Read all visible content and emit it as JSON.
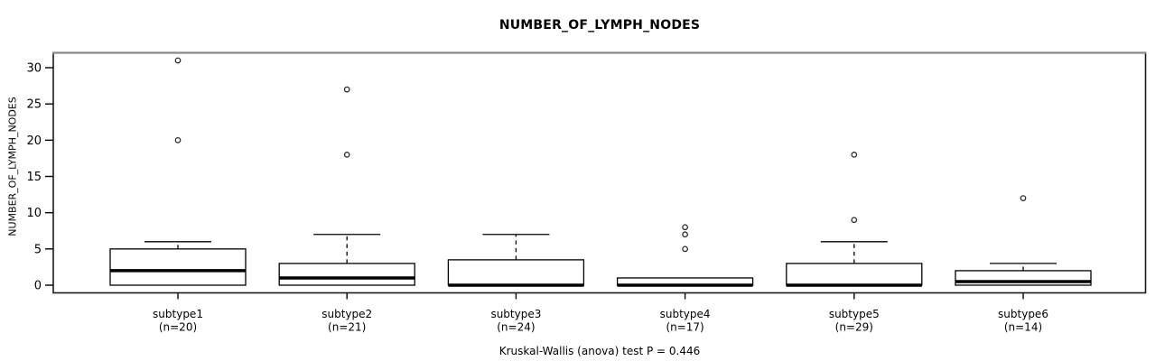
{
  "title": "NUMBER_OF_LYMPH_NODES",
  "y_axis_title": "NUMBER_OF_LYMPH_NODES",
  "caption": "Kruskal-Wallis (anova) test P = 0.446",
  "colors": {
    "foreground": "#000000",
    "box_fill": "#ffffff",
    "border_top": "#8a8a8a",
    "outlier_stroke": "#2a2a2a",
    "background": "#ffffff"
  },
  "chart_data": {
    "type": "boxplot",
    "title": "NUMBER_OF_LYMPH_NODES",
    "ylabel": "NUMBER_OF_LYMPH_NODES",
    "xlabel": "",
    "grid": false,
    "legend": false,
    "ylim": [
      0,
      32
    ],
    "yticks": [
      0,
      5,
      10,
      15,
      20,
      25,
      30
    ],
    "categories": [
      "subtype1",
      "subtype2",
      "subtype3",
      "subtype4",
      "subtype5",
      "subtype6"
    ],
    "category_sublabels": [
      "(n=20)",
      "(n=21)",
      "(n=24)",
      "(n=17)",
      "(n=29)",
      "(n=14)"
    ],
    "sample_sizes": [
      20,
      21,
      24,
      17,
      29,
      14
    ],
    "series": [
      {
        "name": "subtype1",
        "n": 20,
        "whisker_low": 0,
        "q1": 0,
        "median": 2,
        "q3": 5,
        "whisker_high": 6,
        "outliers": [
          20,
          31
        ]
      },
      {
        "name": "subtype2",
        "n": 21,
        "whisker_low": 0,
        "q1": 0,
        "median": 1,
        "q3": 3,
        "whisker_high": 7,
        "outliers": [
          18,
          27
        ]
      },
      {
        "name": "subtype3",
        "n": 24,
        "whisker_low": 0,
        "q1": 0,
        "median": 0,
        "q3": 3.5,
        "whisker_high": 7,
        "outliers": []
      },
      {
        "name": "subtype4",
        "n": 17,
        "whisker_low": 0,
        "q1": 0,
        "median": 0,
        "q3": 1,
        "whisker_high": 1,
        "outliers": [
          5,
          7,
          8
        ]
      },
      {
        "name": "subtype5",
        "n": 29,
        "whisker_low": 0,
        "q1": 0,
        "median": 0,
        "q3": 3,
        "whisker_high": 6,
        "outliers": [
          9,
          18
        ]
      },
      {
        "name": "subtype6",
        "n": 14,
        "whisker_low": 0,
        "q1": 0,
        "median": 0.5,
        "q3": 2,
        "whisker_high": 3,
        "outliers": [
          12
        ]
      }
    ],
    "statistical_test": "Kruskal-Wallis (anova) test",
    "p_value": 0.446
  }
}
